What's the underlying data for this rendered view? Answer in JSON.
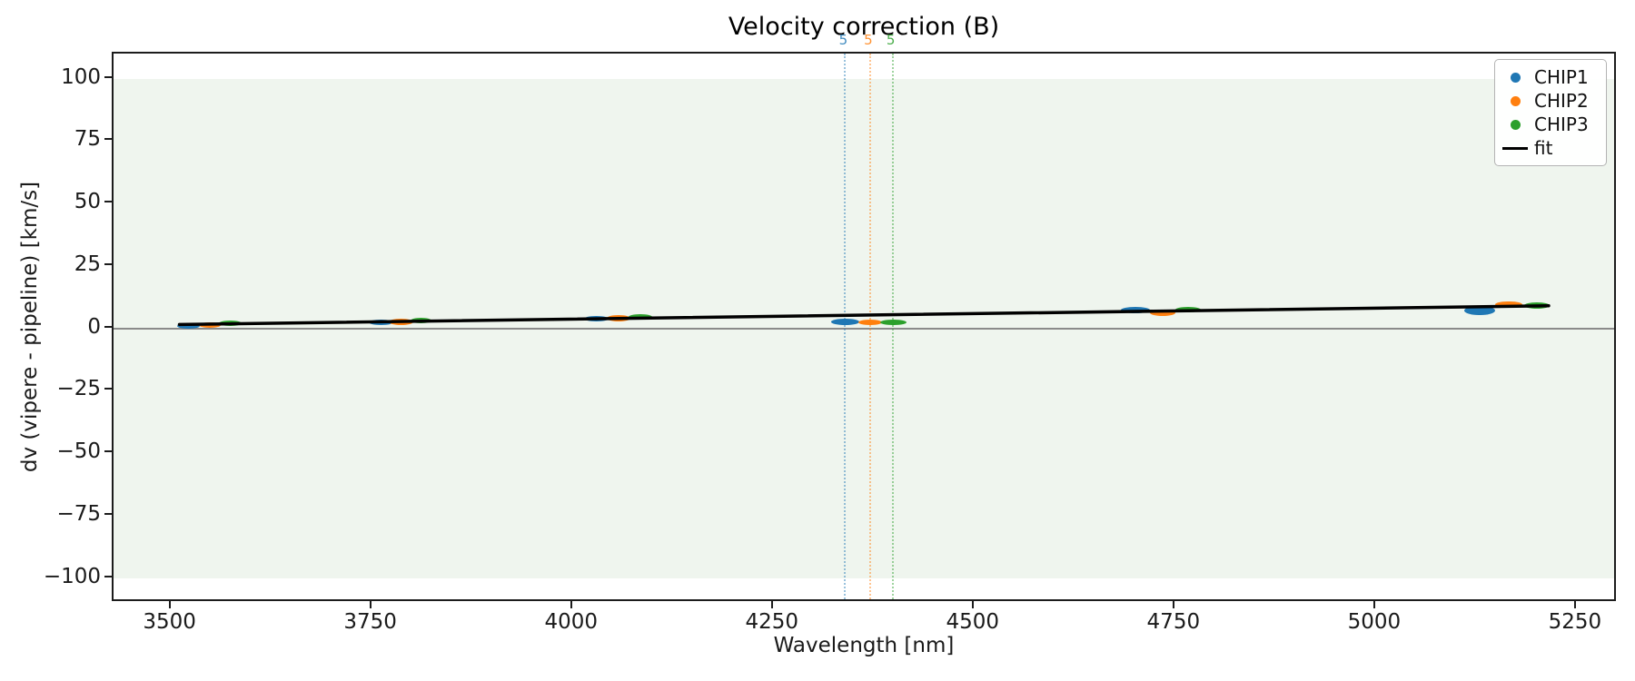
{
  "figure": {
    "title": "Velocity correction (B)",
    "xlabel": "Wavelength [nm]",
    "ylabel": "dv (vipere - pipeline) [km/s]"
  },
  "legend": {
    "entries": [
      {
        "label": "CHIP1",
        "color": "#1f77b4",
        "marker": "dot"
      },
      {
        "label": "CHIP2",
        "color": "#ff7f0e",
        "marker": "dot"
      },
      {
        "label": "CHIP3",
        "color": "#2ca02c",
        "marker": "dot"
      },
      {
        "label": "fit",
        "color": "#000000",
        "marker": "line"
      }
    ]
  },
  "chart_data": {
    "type": "scatter",
    "title": "Velocity correction (B)",
    "xlabel": "Wavelength [nm]",
    "ylabel": "dv (vipere - pipeline) [km/s]",
    "xlim": [
      3428,
      5301
    ],
    "ylim": [
      -110,
      110
    ],
    "grid": false,
    "legend_position": "upper right",
    "xticks": [
      3500,
      3750,
      4000,
      4250,
      4500,
      4750,
      5000,
      5250
    ],
    "yticks": [
      {
        "v": 100,
        "label": "100"
      },
      {
        "v": 75,
        "label": "75"
      },
      {
        "v": 50,
        "label": "50"
      },
      {
        "v": 25,
        "label": "25"
      },
      {
        "v": 0,
        "label": "0"
      },
      {
        "v": -25,
        "label": "−25"
      },
      {
        "v": -50,
        "label": "−50"
      },
      {
        "v": -75,
        "label": "−75"
      },
      {
        "v": -100,
        "label": "−100"
      }
    ],
    "background_band": {
      "y_from": -100,
      "y_to": 100,
      "color": "#eff5ee"
    },
    "zero_line": {
      "y": 0,
      "color": "#8a8a8a"
    },
    "series": [
      {
        "name": "CHIP1",
        "color": "#1f77b4",
        "clusters": [
          {
            "wavelength_center": 3521,
            "wavelength_span": 28,
            "dv": 1.0,
            "dv_spread": 2.2
          },
          {
            "wavelength_center": 3761,
            "wavelength_span": 30,
            "dv": 2.3,
            "dv_spread": 2.2
          },
          {
            "wavelength_center": 4029,
            "wavelength_span": 30,
            "dv": 3.7,
            "dv_spread": 2.2
          },
          {
            "wavelength_center": 4339,
            "wavelength_span": 36,
            "dv": 2.4,
            "dv_spread": 2.5
          },
          {
            "wavelength_center": 4700,
            "wavelength_span": 36,
            "dv": 7.3,
            "dv_spread": 2.5
          },
          {
            "wavelength_center": 5129,
            "wavelength_span": 38,
            "dv": 7.0,
            "dv_spread": 3.8
          }
        ]
      },
      {
        "name": "CHIP2",
        "color": "#ff7f0e",
        "clusters": [
          {
            "wavelength_center": 3548,
            "wavelength_span": 28,
            "dv": 1.2,
            "dv_spread": 2.2
          },
          {
            "wavelength_center": 3786,
            "wavelength_span": 30,
            "dv": 2.6,
            "dv_spread": 2.5
          },
          {
            "wavelength_center": 4057,
            "wavelength_span": 30,
            "dv": 4.0,
            "dv_spread": 2.5
          },
          {
            "wavelength_center": 4370,
            "wavelength_span": 30,
            "dv": 2.4,
            "dv_spread": 2.2
          },
          {
            "wavelength_center": 4734,
            "wavelength_span": 32,
            "dv": 6.3,
            "dv_spread": 2.5
          },
          {
            "wavelength_center": 5165,
            "wavelength_span": 34,
            "dv": 9.5,
            "dv_spread": 2.8
          }
        ]
      },
      {
        "name": "CHIP3",
        "color": "#2ca02c",
        "clusters": [
          {
            "wavelength_center": 3573,
            "wavelength_span": 28,
            "dv": 1.9,
            "dv_spread": 2.2
          },
          {
            "wavelength_center": 3811,
            "wavelength_span": 26,
            "dv": 3.1,
            "dv_spread": 2.2
          },
          {
            "wavelength_center": 4084,
            "wavelength_span": 30,
            "dv": 4.4,
            "dv_spread": 2.2
          },
          {
            "wavelength_center": 4399,
            "wavelength_span": 32,
            "dv": 2.5,
            "dv_spread": 2.2
          },
          {
            "wavelength_center": 4766,
            "wavelength_span": 32,
            "dv": 7.4,
            "dv_spread": 2.2
          },
          {
            "wavelength_center": 5200,
            "wavelength_span": 32,
            "dv": 9.0,
            "dv_spread": 2.5
          }
        ]
      }
    ],
    "fit": {
      "label": "fit",
      "color": "#000000",
      "x": [
        3510,
        5215
      ],
      "y": [
        1.5,
        9.0
      ]
    },
    "vlines": [
      {
        "x": 4339,
        "label": "5",
        "color": "#1f77b4",
        "line_opacity": 0.45
      },
      {
        "x": 4370,
        "label": "5",
        "color": "#ff7f0e",
        "line_opacity": 0.45
      },
      {
        "x": 4398,
        "label": "5",
        "color": "#2ca02c",
        "line_opacity": 0.45
      }
    ]
  }
}
